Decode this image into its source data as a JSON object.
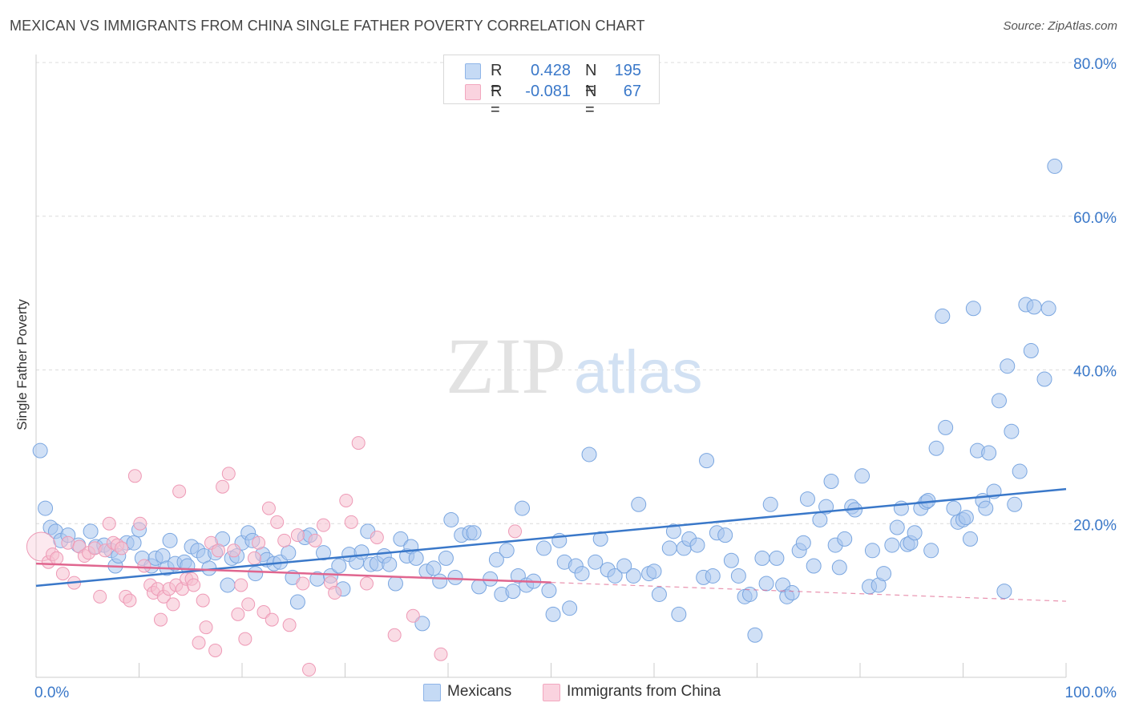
{
  "title": "MEXICAN VS IMMIGRANTS FROM CHINA SINGLE FATHER POVERTY CORRELATION CHART",
  "source": "Source: ZipAtlas.com",
  "watermark": {
    "zip": "ZIP",
    "atlas": "atlas"
  },
  "legend_top": [
    {
      "r_key": "R =",
      "r_value": "0.428",
      "n_key": "N =",
      "n_value": "195",
      "color": "#8fb5e8"
    },
    {
      "r_key": "R =",
      "r_value": "-0.081",
      "n_key": "N =",
      "n_value": "67",
      "color": "#f2a7bf"
    }
  ],
  "legend_bottom": [
    {
      "label": "Mexicans",
      "color": "#8fb5e8"
    },
    {
      "label": "Immigrants from China",
      "color": "#f2a7bf"
    }
  ],
  "chart_data": {
    "type": "scatter",
    "title": "MEXICAN VS IMMIGRANTS FROM CHINA SINGLE FATHER POVERTY CORRELATION CHART",
    "xlabel": "",
    "ylabel": "Single Father Poverty",
    "xlim": [
      0,
      100
    ],
    "ylim": [
      0,
      80
    ],
    "x_tick_labels": [
      "0.0%",
      "100.0%"
    ],
    "y_ticks": [
      20,
      40,
      60,
      80
    ],
    "y_tick_labels": [
      "20.0%",
      "40.0%",
      "60.0%",
      "80.0%"
    ],
    "grid": true,
    "legend_position": "top-center",
    "series": [
      {
        "name": "Mexicans",
        "color": "#3a78c9",
        "fill": "#a9c7ee",
        "trend": {
          "x": [
            0,
            100
          ],
          "y": [
            11.9,
            24.5
          ],
          "dashed_from": null
        },
        "points": [
          [
            0.4,
            29.5
          ],
          [
            0.9,
            22
          ],
          [
            1.4,
            19.5
          ],
          [
            1.9,
            19
          ],
          [
            2.4,
            17.8
          ],
          [
            3.1,
            18.5
          ],
          [
            4.1,
            17.2
          ],
          [
            5.3,
            19
          ],
          [
            5.8,
            17
          ],
          [
            6.6,
            17.2
          ],
          [
            7.3,
            16.5
          ],
          [
            7.7,
            14.5
          ],
          [
            8,
            15.8
          ],
          [
            8.8,
            17.5
          ],
          [
            9.5,
            17.5
          ],
          [
            10,
            19.2
          ],
          [
            10.3,
            15.5
          ],
          [
            11.2,
            14.5
          ],
          [
            11.6,
            15.5
          ],
          [
            12.3,
            15.8
          ],
          [
            12.7,
            14.2
          ],
          [
            13,
            17.8
          ],
          [
            13.5,
            14.8
          ],
          [
            14.4,
            15
          ],
          [
            14.7,
            14.5
          ],
          [
            15.1,
            17
          ],
          [
            15.7,
            16.5
          ],
          [
            16.3,
            15.8
          ],
          [
            16.8,
            14.2
          ],
          [
            17.4,
            16.2
          ],
          [
            18.1,
            18
          ],
          [
            18.6,
            12
          ],
          [
            19,
            15.5
          ],
          [
            19.5,
            15.8
          ],
          [
            20,
            17.5
          ],
          [
            20.6,
            18.8
          ],
          [
            21,
            17.8
          ],
          [
            21.3,
            13.5
          ],
          [
            22,
            16
          ],
          [
            22.4,
            15.3
          ],
          [
            23.1,
            14.8
          ],
          [
            23.7,
            15
          ],
          [
            24.5,
            16.2
          ],
          [
            24.9,
            13
          ],
          [
            25.4,
            9.8
          ],
          [
            26.1,
            18.2
          ],
          [
            26.6,
            18.5
          ],
          [
            27.3,
            12.8
          ],
          [
            27.9,
            16.2
          ],
          [
            28.6,
            13.2
          ],
          [
            29.4,
            14.5
          ],
          [
            29.8,
            11.5
          ],
          [
            30.4,
            16
          ],
          [
            31.1,
            15
          ],
          [
            31.6,
            16.3
          ],
          [
            32.2,
            19
          ],
          [
            32.5,
            14.7
          ],
          [
            33.1,
            14.8
          ],
          [
            33.8,
            15.8
          ],
          [
            34.3,
            14.7
          ],
          [
            34.9,
            12.2
          ],
          [
            35.4,
            18
          ],
          [
            36,
            15.8
          ],
          [
            36.4,
            17
          ],
          [
            36.9,
            15.5
          ],
          [
            37.5,
            7
          ],
          [
            37.9,
            13.8
          ],
          [
            38.6,
            14.2
          ],
          [
            39.2,
            12.5
          ],
          [
            39.8,
            15.5
          ],
          [
            40.3,
            20.5
          ],
          [
            40.7,
            13
          ],
          [
            41.3,
            18.5
          ],
          [
            42.1,
            18.8
          ],
          [
            42.5,
            18.8
          ],
          [
            43,
            11.8
          ],
          [
            44.1,
            12.8
          ],
          [
            44.7,
            15.3
          ],
          [
            45.2,
            10.8
          ],
          [
            45.7,
            16.5
          ],
          [
            46.3,
            11.2
          ],
          [
            46.8,
            13.2
          ],
          [
            47.2,
            22
          ],
          [
            47.6,
            12
          ],
          [
            48.3,
            12.5
          ],
          [
            49.3,
            16.8
          ],
          [
            49.8,
            11.3
          ],
          [
            50.2,
            8.2
          ],
          [
            50.8,
            17.8
          ],
          [
            51.3,
            15
          ],
          [
            51.8,
            9
          ],
          [
            52.4,
            14.5
          ],
          [
            53,
            13.5
          ],
          [
            53.7,
            29
          ],
          [
            54.3,
            15
          ],
          [
            54.8,
            18
          ],
          [
            55.5,
            14
          ],
          [
            56.2,
            13.2
          ],
          [
            57.1,
            14.5
          ],
          [
            58,
            13.2
          ],
          [
            58.5,
            22.5
          ],
          [
            59.5,
            13.5
          ],
          [
            60,
            13.8
          ],
          [
            60.5,
            10.8
          ],
          [
            61.5,
            16.8
          ],
          [
            61.9,
            19
          ],
          [
            62.4,
            8.2
          ],
          [
            62.9,
            16.8
          ],
          [
            63.4,
            18
          ],
          [
            64.2,
            17.2
          ],
          [
            64.8,
            13
          ],
          [
            65.1,
            28.2
          ],
          [
            65.7,
            13.2
          ],
          [
            66.1,
            18.8
          ],
          [
            66.9,
            18.5
          ],
          [
            67.5,
            15.2
          ],
          [
            68.2,
            13.2
          ],
          [
            68.8,
            10.5
          ],
          [
            69.3,
            10.8
          ],
          [
            69.8,
            5.5
          ],
          [
            70.5,
            15.5
          ],
          [
            70.9,
            12.2
          ],
          [
            71.3,
            22.5
          ],
          [
            71.9,
            15.5
          ],
          [
            72.5,
            12
          ],
          [
            72.9,
            10.5
          ],
          [
            73.4,
            11
          ],
          [
            74.1,
            16.5
          ],
          [
            74.5,
            17.5
          ],
          [
            74.9,
            23.2
          ],
          [
            75.5,
            14.5
          ],
          [
            76.1,
            20.5
          ],
          [
            76.7,
            22.2
          ],
          [
            77.2,
            25.5
          ],
          [
            77.6,
            17.2
          ],
          [
            78,
            14.3
          ],
          [
            78.5,
            18
          ],
          [
            79.2,
            22.2
          ],
          [
            79.5,
            21.8
          ],
          [
            80.2,
            26.2
          ],
          [
            80.9,
            11.8
          ],
          [
            81.2,
            16.5
          ],
          [
            81.8,
            12
          ],
          [
            82.3,
            13.5
          ],
          [
            83.1,
            17.2
          ],
          [
            83.6,
            19.5
          ],
          [
            84,
            22
          ],
          [
            84.6,
            17.3
          ],
          [
            84.9,
            17.5
          ],
          [
            85.3,
            18.8
          ],
          [
            85.9,
            22
          ],
          [
            86.4,
            22.8
          ],
          [
            86.6,
            23
          ],
          [
            86.9,
            16.5
          ],
          [
            87.4,
            29.8
          ],
          [
            88,
            47
          ],
          [
            88.3,
            32.5
          ],
          [
            89.1,
            22
          ],
          [
            89.5,
            20.2
          ],
          [
            90,
            20.5
          ],
          [
            90.3,
            20.8
          ],
          [
            90.7,
            18
          ],
          [
            91,
            48
          ],
          [
            91.4,
            29.5
          ],
          [
            91.9,
            23
          ],
          [
            92.2,
            22
          ],
          [
            92.5,
            29.2
          ],
          [
            93,
            24.2
          ],
          [
            93.5,
            36
          ],
          [
            94,
            11.2
          ],
          [
            94.3,
            40.5
          ],
          [
            94.7,
            32
          ],
          [
            95,
            22.5
          ],
          [
            95.5,
            26.8
          ],
          [
            96.1,
            48.5
          ],
          [
            96.6,
            42.5
          ],
          [
            96.9,
            48.2
          ],
          [
            97.9,
            38.8
          ],
          [
            98.3,
            48
          ],
          [
            98.9,
            66.5
          ]
        ]
      },
      {
        "name": "Immigrants from China",
        "color": "#e0668f",
        "fill": "#f6bfd0",
        "trend": {
          "x": [
            0,
            100
          ],
          "y": [
            14.8,
            9.9
          ],
          "dashed_from": 50
        },
        "points": [
          [
            0.5,
            17
          ],
          [
            1.2,
            15
          ],
          [
            1.6,
            16
          ],
          [
            2,
            15.5
          ],
          [
            2.6,
            13.5
          ],
          [
            3.1,
            17.5
          ],
          [
            3.7,
            12.3
          ],
          [
            4.2,
            17
          ],
          [
            4.7,
            15.8
          ],
          [
            5.1,
            16.2
          ],
          [
            5.7,
            16.8
          ],
          [
            6.2,
            10.5
          ],
          [
            6.7,
            16.5
          ],
          [
            7.1,
            20
          ],
          [
            7.5,
            17.5
          ],
          [
            7.9,
            17.2
          ],
          [
            8.3,
            16.8
          ],
          [
            8.7,
            10.5
          ],
          [
            9.1,
            10
          ],
          [
            9.6,
            26.2
          ],
          [
            10.1,
            20
          ],
          [
            10.5,
            14.5
          ],
          [
            11.1,
            12
          ],
          [
            11.4,
            11
          ],
          [
            11.8,
            11.5
          ],
          [
            12.1,
            7.5
          ],
          [
            12.4,
            10.5
          ],
          [
            12.9,
            11.5
          ],
          [
            13.3,
            9.5
          ],
          [
            13.6,
            12
          ],
          [
            13.9,
            24.2
          ],
          [
            14.2,
            11.5
          ],
          [
            14.6,
            12.8
          ],
          [
            15.1,
            12.8
          ],
          [
            15.3,
            12
          ],
          [
            15.8,
            4.5
          ],
          [
            16.2,
            10
          ],
          [
            16.5,
            6.5
          ],
          [
            17,
            17.5
          ],
          [
            17.4,
            3.5
          ],
          [
            17.7,
            16.5
          ],
          [
            18.1,
            24.8
          ],
          [
            18.7,
            26.5
          ],
          [
            19.2,
            16.5
          ],
          [
            19.6,
            8.2
          ],
          [
            19.9,
            12
          ],
          [
            20.3,
            5
          ],
          [
            20.6,
            9.5
          ],
          [
            21.2,
            15.5
          ],
          [
            21.6,
            17.5
          ],
          [
            22.1,
            8.5
          ],
          [
            22.6,
            22
          ],
          [
            22.9,
            7.5
          ],
          [
            23.4,
            20.2
          ],
          [
            24.1,
            17.8
          ],
          [
            24.6,
            6.8
          ],
          [
            25.4,
            18.5
          ],
          [
            25.9,
            12.2
          ],
          [
            26.5,
            1
          ],
          [
            27.1,
            17.8
          ],
          [
            27.9,
            19.8
          ],
          [
            28.6,
            12.3
          ],
          [
            29,
            11
          ],
          [
            30.1,
            23
          ],
          [
            30.6,
            20.2
          ],
          [
            31.3,
            30.5
          ],
          [
            32.1,
            12.2
          ],
          [
            33.1,
            18.2
          ],
          [
            34.8,
            5.5
          ],
          [
            36.6,
            8
          ],
          [
            39.3,
            3
          ],
          [
            46.5,
            19
          ]
        ]
      }
    ]
  }
}
